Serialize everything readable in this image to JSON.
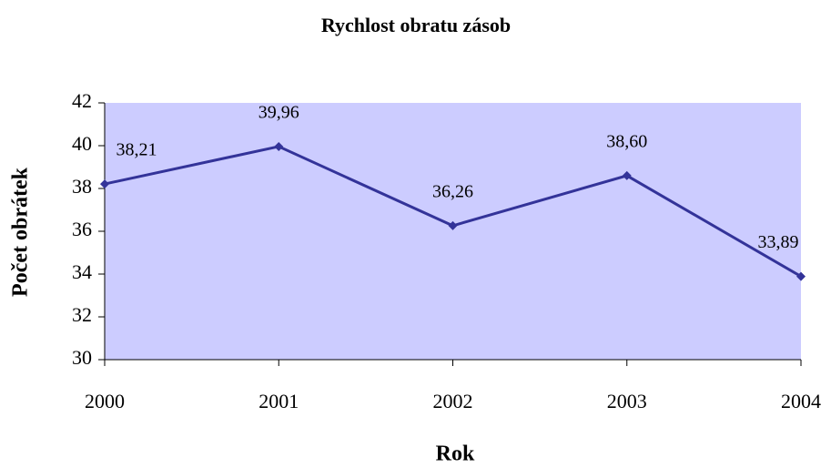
{
  "chart_data": {
    "type": "line",
    "title": "Rychlost obratu zásob",
    "x_label": "Rok",
    "y_label": "Počet obrátek",
    "x": [
      2000,
      2001,
      2002,
      2003,
      2004
    ],
    "xlim": [
      2000,
      2004
    ],
    "xticks": [
      2000,
      2001,
      2002,
      2003,
      2004
    ],
    "series": [
      {
        "name": "Rychlost obratu zásob",
        "color": "#333399",
        "values": [
          38.21,
          39.96,
          36.26,
          38.6,
          33.89
        ],
        "value_labels": [
          "38,21",
          "39,96",
          "36,26",
          "38,60",
          "33,89"
        ]
      }
    ],
    "ylim": [
      30,
      42
    ],
    "yticks": [
      30,
      32,
      34,
      36,
      38,
      40,
      42
    ],
    "grid": false,
    "plot_background": "#ccccff"
  }
}
